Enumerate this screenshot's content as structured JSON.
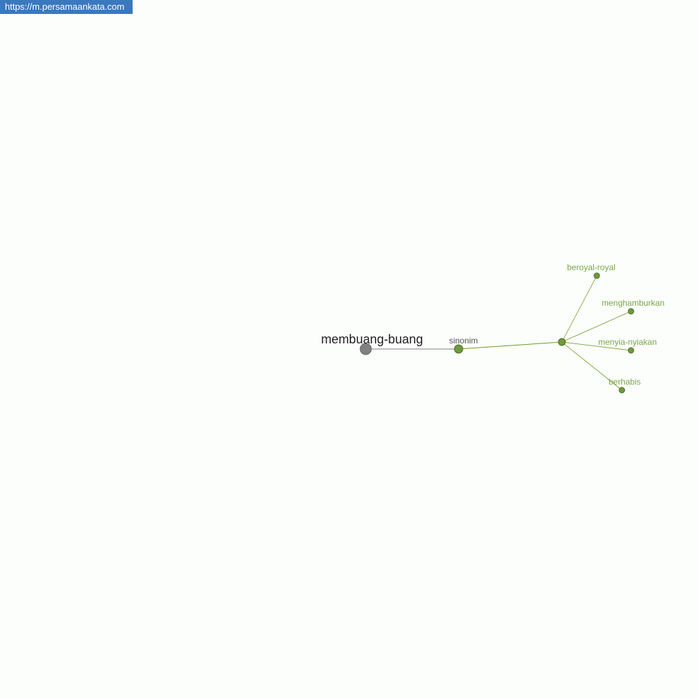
{
  "site_url": "https://m.persamaankata.com",
  "graph": {
    "root": {
      "label": "membuang-buang",
      "color": "#808080"
    },
    "relation": {
      "label": "sinonim",
      "color": "#6f9a3a"
    },
    "words": [
      {
        "label": "beroyal-royal"
      },
      {
        "label": "menghamburkan"
      },
      {
        "label": "menyia-nyiakan"
      },
      {
        "label": "berhabis"
      }
    ],
    "word_color": "#7aa845",
    "edge_color": "#6f9a20"
  }
}
